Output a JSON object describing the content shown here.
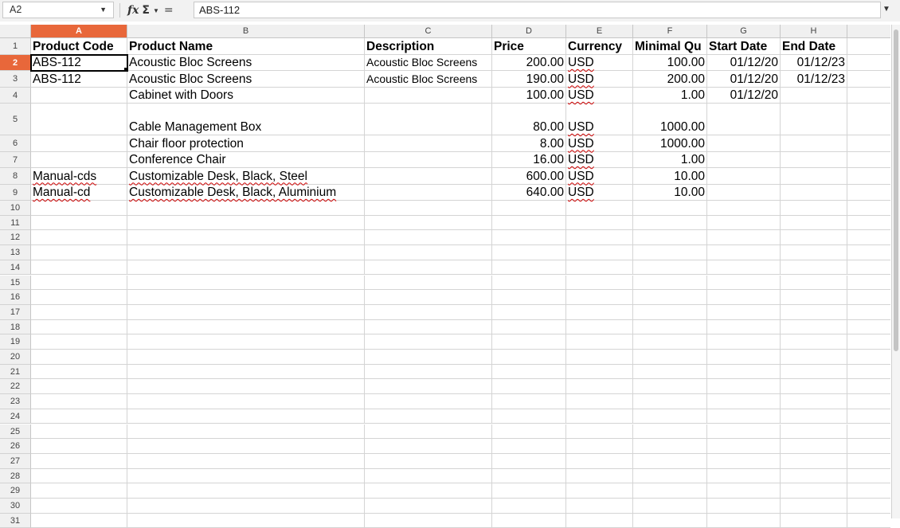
{
  "formula_bar": {
    "name_box": "A2",
    "formula_value": "ABS-112",
    "fx_icon": "function-wizard-icon",
    "sum_icon": "sum-icon",
    "equals_icon": "formula-icon"
  },
  "columns": [
    "A",
    "B",
    "C",
    "D",
    "E",
    "F",
    "G",
    "H"
  ],
  "active_column": "A",
  "active_row": 2,
  "rows": [
    "1",
    "2",
    "3",
    "4",
    "5",
    "6",
    "7",
    "8",
    "9",
    "10",
    "11",
    "12",
    "13",
    "14",
    "15",
    "16",
    "17",
    "18",
    "19",
    "20",
    "21",
    "22",
    "23",
    "24",
    "25",
    "26",
    "27",
    "28",
    "29",
    "30",
    "31"
  ],
  "header": {
    "product_code": "Product Code",
    "product_name": "Product Name",
    "description": "Description",
    "price": "Price",
    "currency": "Currency",
    "minimal_qty": "Minimal Qu",
    "start_date": "Start Date",
    "end_date": "End Date"
  },
  "data_rows": [
    {
      "code": "ABS-112",
      "name": "Acoustic Bloc Screens",
      "description": "Acoustic Bloc Screens",
      "price": "200.00",
      "currency": "USD",
      "min_qty": "100.00",
      "start": "01/12/20",
      "end": "01/12/23"
    },
    {
      "code": "ABS-112",
      "name": "Acoustic Bloc Screens",
      "description": "Acoustic Bloc Screens",
      "price": "190.00",
      "currency": "USD",
      "min_qty": "200.00",
      "start": "01/12/20",
      "end": "01/12/23"
    },
    {
      "code": "",
      "name": "Cabinet with Doors",
      "description": "",
      "price": "100.00",
      "currency": "USD",
      "min_qty": "1.00",
      "start": "01/12/20",
      "end": ""
    },
    {
      "code": "",
      "name": "Cable Management Box",
      "description": "",
      "price": "80.00",
      "currency": "USD",
      "min_qty": "1000.00",
      "start": "",
      "end": ""
    },
    {
      "code": "",
      "name": "Chair floor protection",
      "description": "",
      "price": "8.00",
      "currency": "USD",
      "min_qty": "1000.00",
      "start": "",
      "end": ""
    },
    {
      "code": "",
      "name": "Conference Chair",
      "description": "",
      "price": "16.00",
      "currency": "USD",
      "min_qty": "1.00",
      "start": "",
      "end": ""
    },
    {
      "code": "Manual-cds",
      "name": "Customizable Desk, Black, Steel",
      "description": "",
      "price": "600.00",
      "currency": "USD",
      "min_qty": "10.00",
      "start": "",
      "end": ""
    },
    {
      "code": "Manual-cd",
      "name": "Customizable Desk, Black, Aluminium",
      "description": "",
      "price": "640.00",
      "currency": "USD",
      "min_qty": "10.00",
      "start": "",
      "end": ""
    }
  ],
  "colors": {
    "active_header": "#e8673a",
    "header_bg": "#f0f0f0",
    "grid_line": "#d4d4d4",
    "spellcheck": "#d00000"
  }
}
